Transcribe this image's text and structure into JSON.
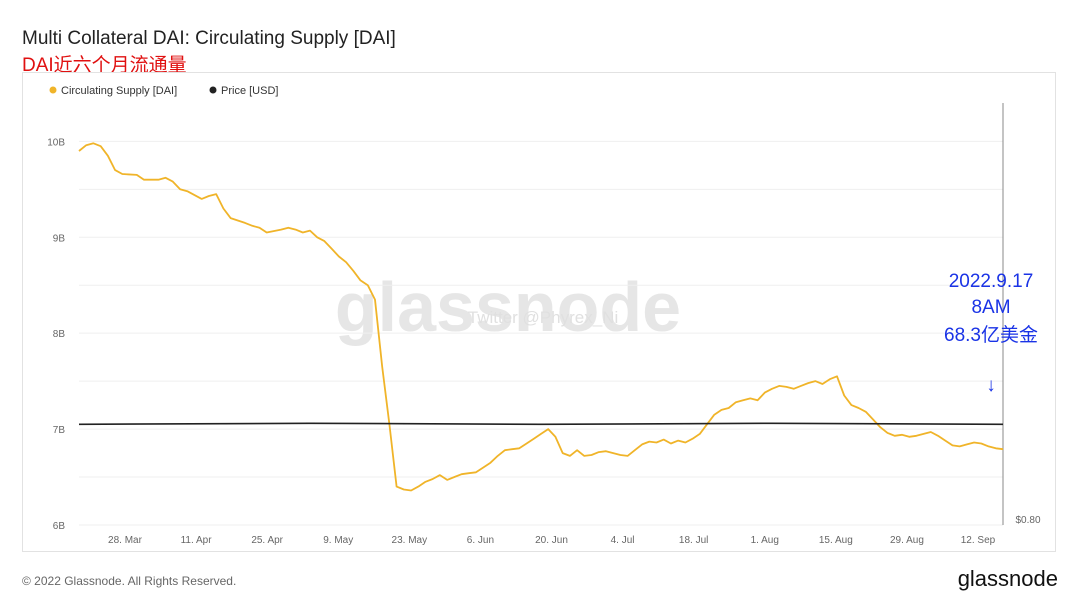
{
  "header": {
    "title": "Multi Collateral DAI: Circulating Supply [DAI]",
    "subtitle": "DAI近六个月流通量"
  },
  "chart_data": {
    "type": "line",
    "legend": [
      {
        "name": "Circulating Supply [DAI]",
        "color": "#f0b429"
      },
      {
        "name": "Price [USD]",
        "color": "#222222"
      }
    ],
    "x_ticks": [
      "28. Mar",
      "11. Apr",
      "25. Apr",
      "9. May",
      "23. May",
      "6. Jun",
      "20. Jun",
      "4. Jul",
      "18. Jul",
      "1. Aug",
      "15. Aug",
      "29. Aug",
      "12. Sep"
    ],
    "y_ticks": [
      "6B",
      "7B",
      "8B",
      "9B",
      "10B"
    ],
    "ylim": [
      6,
      10.4
    ],
    "y_unit": "B",
    "right_axis_label": "$0.80",
    "series": [
      {
        "name": "Circulating Supply [DAI]",
        "color": "#f0b429",
        "points": [
          [
            0,
            9.9
          ],
          [
            1,
            9.96
          ],
          [
            2,
            9.98
          ],
          [
            3,
            9.95
          ],
          [
            4,
            9.85
          ],
          [
            5,
            9.7
          ],
          [
            6,
            9.66
          ],
          [
            8,
            9.65
          ],
          [
            9,
            9.6
          ],
          [
            11,
            9.6
          ],
          [
            12,
            9.62
          ],
          [
            13,
            9.58
          ],
          [
            14,
            9.5
          ],
          [
            15,
            9.48
          ],
          [
            16,
            9.44
          ],
          [
            17,
            9.4
          ],
          [
            18,
            9.43
          ],
          [
            19,
            9.45
          ],
          [
            20,
            9.3
          ],
          [
            21,
            9.2
          ],
          [
            23,
            9.15
          ],
          [
            24,
            9.12
          ],
          [
            25,
            9.1
          ],
          [
            26,
            9.05
          ],
          [
            28,
            9.08
          ],
          [
            29,
            9.1
          ],
          [
            30,
            9.08
          ],
          [
            31,
            9.05
          ],
          [
            32,
            9.07
          ],
          [
            33,
            9.0
          ],
          [
            34,
            8.96
          ],
          [
            35,
            8.88
          ],
          [
            36,
            8.8
          ],
          [
            37,
            8.74
          ],
          [
            38,
            8.65
          ],
          [
            39,
            8.55
          ],
          [
            40,
            8.5
          ],
          [
            41,
            8.35
          ],
          [
            42,
            7.65
          ],
          [
            43,
            7.05
          ],
          [
            44,
            6.4
          ],
          [
            45,
            6.37
          ],
          [
            46,
            6.36
          ],
          [
            47,
            6.4
          ],
          [
            48,
            6.45
          ],
          [
            49,
            6.48
          ],
          [
            50,
            6.52
          ],
          [
            51,
            6.47
          ],
          [
            52,
            6.5
          ],
          [
            53,
            6.53
          ],
          [
            54,
            6.54
          ],
          [
            55,
            6.55
          ],
          [
            56,
            6.6
          ],
          [
            57,
            6.65
          ],
          [
            58,
            6.72
          ],
          [
            59,
            6.78
          ],
          [
            60,
            6.79
          ],
          [
            61,
            6.8
          ],
          [
            62,
            6.85
          ],
          [
            63,
            6.9
          ],
          [
            64,
            6.95
          ],
          [
            65,
            7.0
          ],
          [
            66,
            6.92
          ],
          [
            67,
            6.75
          ],
          [
            68,
            6.72
          ],
          [
            69,
            6.78
          ],
          [
            70,
            6.72
          ],
          [
            71,
            6.73
          ],
          [
            72,
            6.76
          ],
          [
            73,
            6.77
          ],
          [
            74,
            6.75
          ],
          [
            75,
            6.73
          ],
          [
            76,
            6.72
          ],
          [
            77,
            6.78
          ],
          [
            78,
            6.84
          ],
          [
            79,
            6.87
          ],
          [
            80,
            6.86
          ],
          [
            81,
            6.89
          ],
          [
            82,
            6.85
          ],
          [
            83,
            6.88
          ],
          [
            84,
            6.86
          ],
          [
            85,
            6.9
          ],
          [
            86,
            6.95
          ],
          [
            87,
            7.05
          ],
          [
            88,
            7.15
          ],
          [
            89,
            7.2
          ],
          [
            90,
            7.22
          ],
          [
            91,
            7.28
          ],
          [
            92,
            7.3
          ],
          [
            93,
            7.32
          ],
          [
            94,
            7.3
          ],
          [
            95,
            7.38
          ],
          [
            96,
            7.42
          ],
          [
            97,
            7.45
          ],
          [
            98,
            7.44
          ],
          [
            99,
            7.42
          ],
          [
            100,
            7.45
          ],
          [
            101,
            7.48
          ],
          [
            102,
            7.5
          ],
          [
            103,
            7.47
          ],
          [
            104,
            7.52
          ],
          [
            105,
            7.55
          ],
          [
            106,
            7.35
          ],
          [
            107,
            7.25
          ],
          [
            108,
            7.22
          ],
          [
            109,
            7.18
          ],
          [
            110,
            7.1
          ],
          [
            111,
            7.02
          ],
          [
            112,
            6.96
          ],
          [
            113,
            6.93
          ],
          [
            114,
            6.94
          ],
          [
            115,
            6.92
          ],
          [
            116,
            6.93
          ],
          [
            117,
            6.95
          ],
          [
            118,
            6.97
          ],
          [
            119,
            6.93
          ],
          [
            120,
            6.88
          ],
          [
            121,
            6.83
          ],
          [
            122,
            6.82
          ],
          [
            123,
            6.84
          ],
          [
            124,
            6.86
          ],
          [
            125,
            6.85
          ],
          [
            126,
            6.82
          ],
          [
            127,
            6.8
          ],
          [
            128,
            6.79
          ]
        ]
      },
      {
        "name": "Price [USD]",
        "color": "#222222",
        "points": [
          [
            0,
            7.05
          ],
          [
            32,
            7.06
          ],
          [
            64,
            7.05
          ],
          [
            96,
            7.06
          ],
          [
            128,
            7.05
          ]
        ]
      }
    ]
  },
  "annotation": {
    "date": "2022.9.17",
    "time": "8AM",
    "amount": "68.3亿美金",
    "arrow": "↓"
  },
  "watermark": {
    "brand": "glassnode",
    "handle": "Twitter @Phyrex_Ni"
  },
  "footer": {
    "copyright": "© 2022 Glassnode. All Rights Reserved.",
    "brand": "glassnode"
  }
}
